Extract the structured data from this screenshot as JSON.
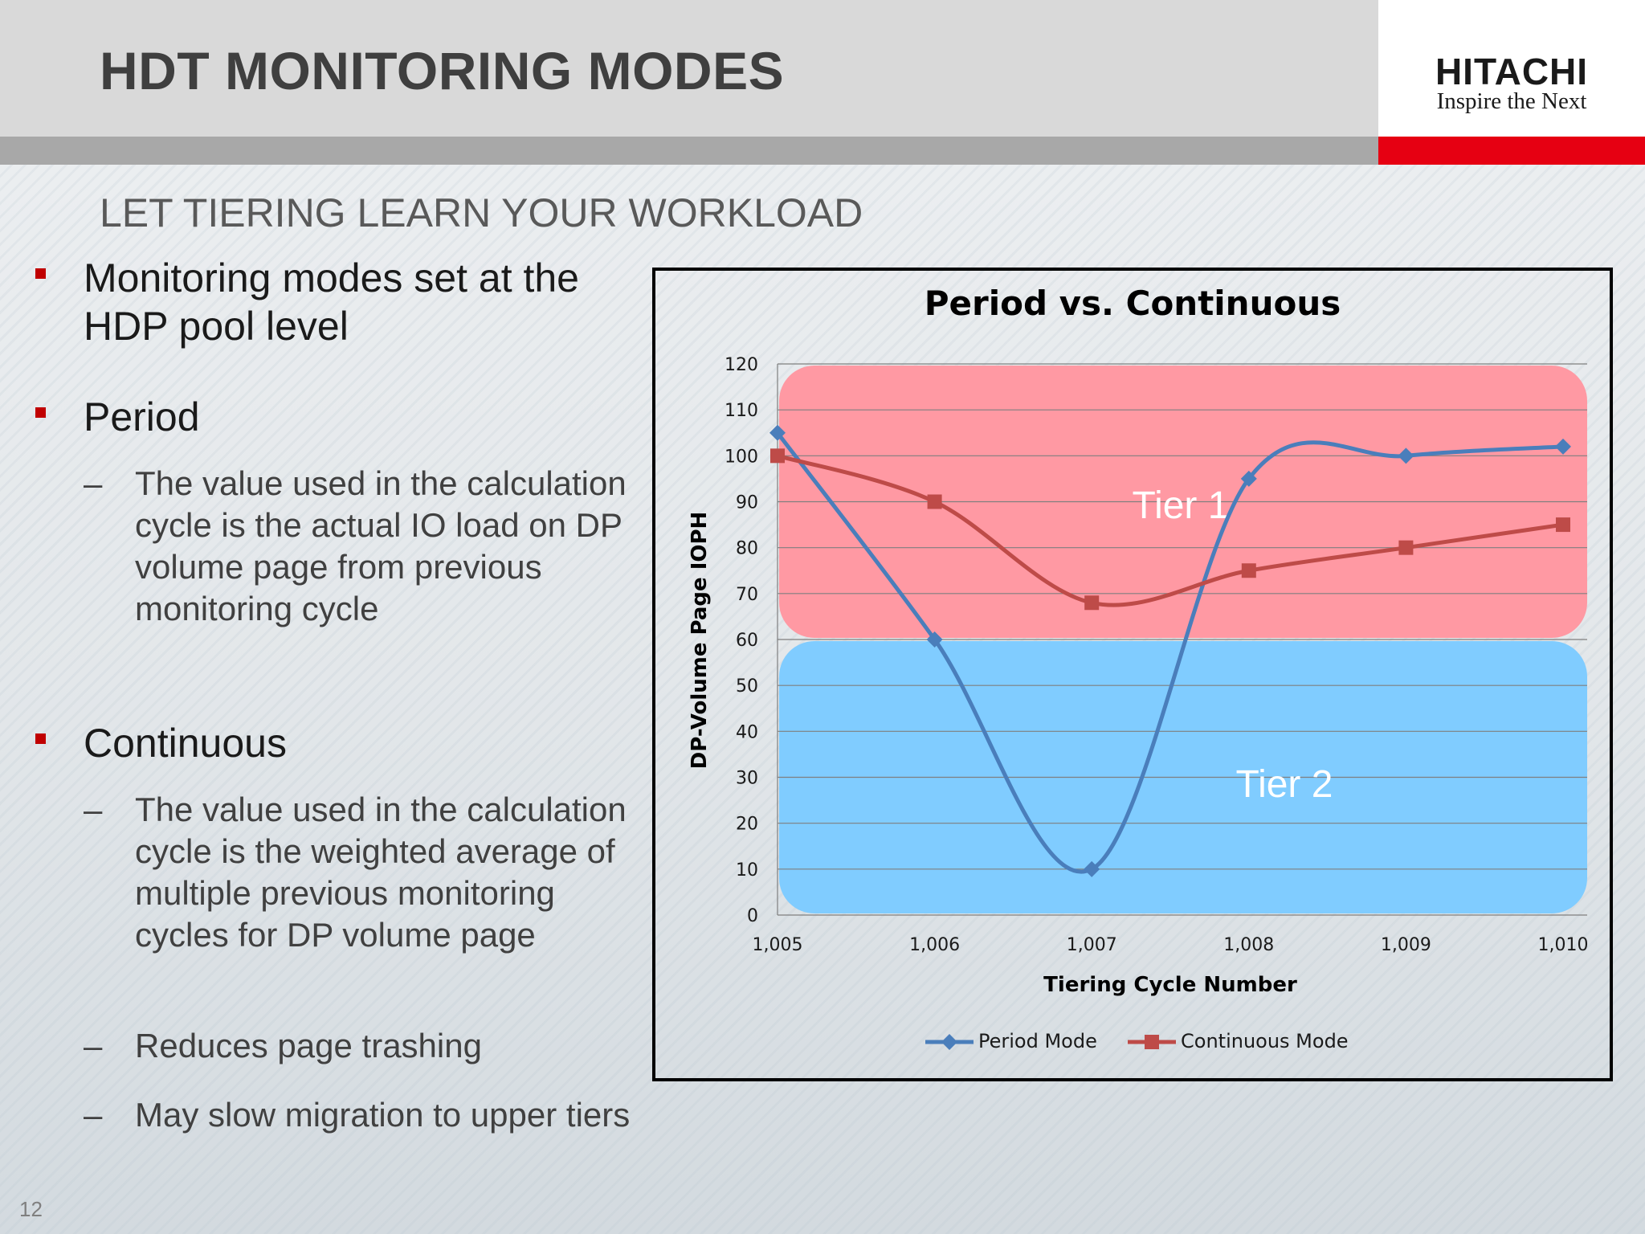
{
  "header": {
    "title": "HDT MONITORING MODES",
    "subtitle": "LET TIERING LEARN YOUR WORKLOAD"
  },
  "logo": {
    "name": "HITACHI",
    "tagline": "Inspire the Next"
  },
  "bullets": [
    {
      "text": "Monitoring modes set at the HDP pool level"
    },
    {
      "text": "Period",
      "subs": [
        "The value used in the calculation cycle is the actual IO load on DP volume page from previous monitoring cycle"
      ]
    },
    {
      "text": "Continuous",
      "subs": [
        "The value used in the calculation cycle is the weighted average of multiple previous monitoring cycles for DP volume page",
        "Reduces page trashing",
        "May slow migration to upper tiers"
      ]
    }
  ],
  "page_number": "12",
  "colors": {
    "accent_red": "#c00000",
    "logo_red": "#e60012",
    "period_series": "#4a7ebb",
    "continuous_series": "#be4b48",
    "tier1_band": "#ff99a3",
    "tier2_band": "#80ccff"
  },
  "chart_data": {
    "type": "line",
    "title": "Period vs. Continuous",
    "xlabel": "Tiering Cycle Number",
    "ylabel": "DP-Volume Page IOPH",
    "x": [
      "1,005",
      "1,006",
      "1,007",
      "1,008",
      "1,009",
      "1,010"
    ],
    "ylim": [
      0,
      120
    ],
    "yticks": [
      0,
      10,
      20,
      30,
      40,
      50,
      60,
      70,
      80,
      90,
      100,
      110,
      120
    ],
    "grid": true,
    "legend_position": "bottom",
    "series": [
      {
        "name": "Period Mode",
        "values": [
          105,
          60,
          10,
          95,
          100,
          102
        ],
        "marker": "diamond",
        "color": "#4a7ebb"
      },
      {
        "name": "Continuous Mode",
        "values": [
          100,
          90,
          68,
          75,
          80,
          85
        ],
        "marker": "square",
        "color": "#be4b48"
      }
    ],
    "bands": [
      {
        "label": "Tier 1",
        "from": 60,
        "to": 120,
        "color": "#ff99a3"
      },
      {
        "label": "Tier 2",
        "from": 0,
        "to": 60,
        "color": "#80ccff"
      }
    ]
  }
}
